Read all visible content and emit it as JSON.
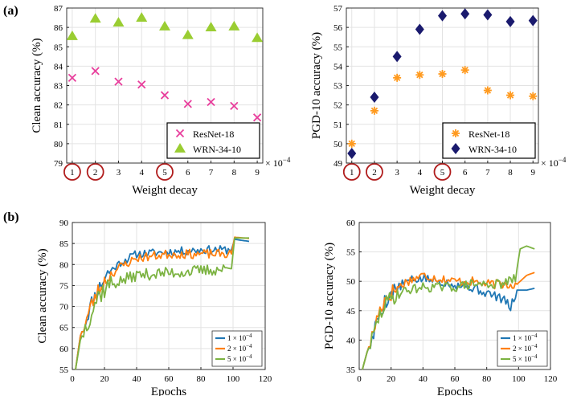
{
  "panel_labels": [
    "(a)",
    "(b)"
  ],
  "colors": {
    "resnet": "#e83e9c",
    "wrn_clean": "#9acd32",
    "resnet_pgd": "#ff9a1f",
    "wrn_pgd": "#1a1a6e",
    "circle": "#b01c1c",
    "wd1": "#1f77b4",
    "wd2": "#ff7f0e",
    "wd5": "#7cb342"
  },
  "chart_data": [
    {
      "id": "a-left",
      "type": "scatter",
      "xlabel": "Weight decay",
      "ylabel": "Clean accuracy (%)",
      "x_multiplier": "× 10",
      "x_multiplier_exp": "−4",
      "xlim": [
        1,
        9
      ],
      "ylim": [
        79,
        87
      ],
      "xticks": [
        "1",
        "2",
        "3",
        "4",
        "5",
        "6",
        "7",
        "8",
        "9"
      ],
      "yticks": [
        "79",
        "80",
        "81",
        "82",
        "83",
        "84",
        "85",
        "86",
        "87"
      ],
      "circled_ticks": [
        1,
        2,
        5
      ],
      "series": [
        {
          "name": "ResNet-18",
          "marker": "x",
          "color": "#e83e9c",
          "x": [
            1,
            2,
            3,
            4,
            5,
            6,
            7,
            8,
            9
          ],
          "y": [
            83.4,
            83.75,
            83.2,
            83.05,
            82.5,
            82.05,
            82.15,
            81.95,
            81.35
          ]
        },
        {
          "name": "WRN-34-10",
          "marker": "triangle",
          "color": "#9acd32",
          "x": [
            1,
            2,
            3,
            4,
            5,
            6,
            7,
            8,
            9
          ],
          "y": [
            85.55,
            86.45,
            86.25,
            86.5,
            86.05,
            85.6,
            86.0,
            86.05,
            85.45
          ]
        }
      ],
      "legend": "bottom-right"
    },
    {
      "id": "a-right",
      "type": "scatter",
      "xlabel": "Weight decay",
      "ylabel": "PGD-10 accuracy (%)",
      "x_multiplier": "× 10",
      "x_multiplier_exp": "−4",
      "xlim": [
        1,
        9
      ],
      "ylim": [
        49,
        57
      ],
      "xticks": [
        "1",
        "2",
        "3",
        "4",
        "5",
        "6",
        "7",
        "8",
        "9"
      ],
      "yticks": [
        "49",
        "50",
        "51",
        "52",
        "53",
        "54",
        "55",
        "56",
        "57"
      ],
      "circled_ticks": [
        1,
        2,
        5
      ],
      "series": [
        {
          "name": "ResNet-18",
          "marker": "star",
          "color": "#ff9a1f",
          "x": [
            1,
            2,
            3,
            4,
            5,
            6,
            7,
            8,
            9
          ],
          "y": [
            50.0,
            51.7,
            53.4,
            53.55,
            53.6,
            53.8,
            52.75,
            52.5,
            52.45
          ]
        },
        {
          "name": "WRN-34-10",
          "marker": "diamond",
          "color": "#1a1a6e",
          "x": [
            1,
            2,
            3,
            4,
            5,
            6,
            7,
            8,
            9
          ],
          "y": [
            49.5,
            52.4,
            54.5,
            55.9,
            56.6,
            56.7,
            56.65,
            56.3,
            56.35
          ]
        }
      ],
      "legend": "bottom-right"
    },
    {
      "id": "b-left",
      "type": "line",
      "xlabel": "Epochs",
      "ylabel": "Clean accuracy (%)",
      "xlim": [
        0,
        120
      ],
      "ylim": [
        55,
        90
      ],
      "xticks": [
        "0",
        "20",
        "40",
        "60",
        "80",
        "100",
        "120"
      ],
      "yticks": [
        "55",
        "60",
        "65",
        "70",
        "75",
        "80",
        "85",
        "90"
      ],
      "legend": "bottom-right",
      "series": [
        {
          "name": "1 × 10",
          "exp": "−4",
          "color": "#1f77b4",
          "anchors": [
            [
              2,
              55
            ],
            [
              5,
              63
            ],
            [
              8,
              66
            ],
            [
              12,
              71
            ],
            [
              16,
              74
            ],
            [
              22,
              78
            ],
            [
              30,
              80.5
            ],
            [
              40,
              82.5
            ],
            [
              60,
              83
            ],
            [
              80,
              83.5
            ],
            [
              99,
              83.5
            ],
            [
              101,
              86
            ],
            [
              110,
              85.5
            ]
          ],
          "noise": 1.0,
          "seed": 11
        },
        {
          "name": "2 × 10",
          "exp": "−4",
          "color": "#ff7f0e",
          "anchors": [
            [
              2,
              55
            ],
            [
              5,
              63
            ],
            [
              8,
              66
            ],
            [
              12,
              70.5
            ],
            [
              16,
              73.5
            ],
            [
              22,
              77
            ],
            [
              30,
              79.5
            ],
            [
              40,
              81.5
            ],
            [
              60,
              82.5
            ],
            [
              80,
              82.5
            ],
            [
              99,
              82.5
            ],
            [
              101,
              86.5
            ],
            [
              110,
              86.2
            ]
          ],
          "noise": 1.1,
          "seed": 23
        },
        {
          "name": "5 × 10",
          "exp": "−4",
          "color": "#7cb342",
          "anchors": [
            [
              2,
              55
            ],
            [
              5,
              62
            ],
            [
              8,
              65
            ],
            [
              12,
              69
            ],
            [
              16,
              72.5
            ],
            [
              22,
              75
            ],
            [
              30,
              76
            ],
            [
              40,
              77.5
            ],
            [
              60,
              78
            ],
            [
              80,
              78.5
            ],
            [
              99,
              79
            ],
            [
              101,
              86.3
            ],
            [
              110,
              86.3
            ]
          ],
          "noise": 1.4,
          "seed": 37
        }
      ]
    },
    {
      "id": "b-right",
      "type": "line",
      "xlabel": "Epochs",
      "ylabel": "PGD-10 accuracy (%)",
      "xlim": [
        0,
        120
      ],
      "ylim": [
        35,
        60
      ],
      "xticks": [
        "0",
        "20",
        "40",
        "60",
        "80",
        "100",
        "120"
      ],
      "yticks": [
        "35",
        "40",
        "45",
        "50",
        "55",
        "60"
      ],
      "legend": "bottom-right",
      "series": [
        {
          "name": "1 × 10",
          "exp": "−4",
          "color": "#1f77b4",
          "anchors": [
            [
              2,
              35
            ],
            [
              5,
              38
            ],
            [
              8,
              40
            ],
            [
              12,
              44
            ],
            [
              16,
              46.5
            ],
            [
              22,
              48.5
            ],
            [
              30,
              50
            ],
            [
              40,
              50.5
            ],
            [
              50,
              50
            ],
            [
              60,
              49.5
            ],
            [
              70,
              49
            ],
            [
              80,
              48
            ],
            [
              90,
              47
            ],
            [
              95,
              45.5
            ],
            [
              99,
              48.5
            ],
            [
              105,
              48.5
            ],
            [
              110,
              48.8
            ]
          ],
          "noise": 0.8,
          "seed": 5
        },
        {
          "name": "2 × 10",
          "exp": "−4",
          "color": "#ff7f0e",
          "anchors": [
            [
              2,
              35
            ],
            [
              5,
              38
            ],
            [
              8,
              40.5
            ],
            [
              12,
              44.5
            ],
            [
              16,
              47
            ],
            [
              22,
              48.5
            ],
            [
              30,
              50
            ],
            [
              40,
              51
            ],
            [
              50,
              50.5
            ],
            [
              60,
              50
            ],
            [
              70,
              50
            ],
            [
              80,
              49.5
            ],
            [
              90,
              49.5
            ],
            [
              99,
              49.5
            ],
            [
              105,
              51
            ],
            [
              110,
              51.5
            ]
          ],
          "noise": 0.8,
          "seed": 17
        },
        {
          "name": "5 × 10",
          "exp": "−4",
          "color": "#7cb342",
          "anchors": [
            [
              2,
              35
            ],
            [
              5,
              38
            ],
            [
              8,
              40
            ],
            [
              12,
              43.5
            ],
            [
              16,
              46
            ],
            [
              22,
              47.5
            ],
            [
              30,
              48.5
            ],
            [
              40,
              49
            ],
            [
              50,
              49
            ],
            [
              60,
              49
            ],
            [
              70,
              49.5
            ],
            [
              80,
              49.5
            ],
            [
              90,
              49.5
            ],
            [
              98,
              50.5
            ],
            [
              101,
              55.5
            ],
            [
              105,
              56
            ],
            [
              110,
              55.5
            ]
          ],
          "noise": 0.8,
          "seed": 29
        }
      ]
    }
  ]
}
